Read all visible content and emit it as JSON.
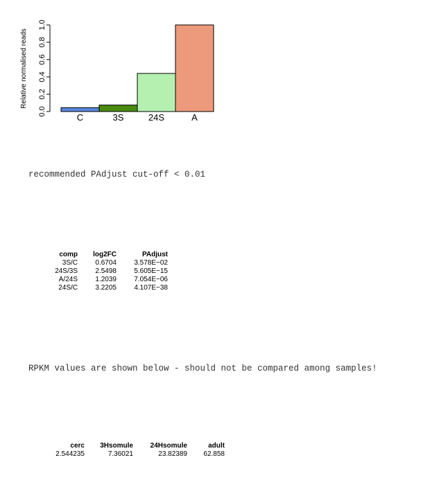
{
  "chart_data": {
    "type": "bar",
    "categories": [
      "C",
      "3S",
      "24S",
      "A"
    ],
    "values": [
      0.045,
      0.075,
      0.44,
      1.0
    ],
    "colors": [
      "#5b86dc",
      "#4a8a12",
      "#b5f0b1",
      "#ec9a7b"
    ],
    "ylabel": "Relative normalised reads",
    "ylim": [
      0,
      1
    ],
    "yticks": [
      "0.0",
      "0.2",
      "0.4",
      "0.6",
      "0.8",
      "1.0"
    ],
    "grid": false
  },
  "notes": {
    "cutoff": "recommended PAdjust cut-off < 0.01",
    "rpkm": "RPKM values are shown below - should not be compared among samples!"
  },
  "comparisons": {
    "headers": [
      "comp",
      "log2FC",
      "PAdjust"
    ],
    "rows": [
      [
        "3S/C",
        "0.6704",
        "3.578E−02"
      ],
      [
        "24S/3S",
        "2.5498",
        "5.605E−15"
      ],
      [
        "A/24S",
        "1.2039",
        "7.054E−06"
      ],
      [
        "24S/C",
        "3.2205",
        "4.107E−38"
      ]
    ]
  },
  "rpkm": {
    "headers": [
      "cerc",
      "3Hsomule",
      "24Hsomule",
      "adult"
    ],
    "rows": [
      [
        "2.544235",
        "7.36021",
        "23.82389",
        "62.858"
      ]
    ]
  }
}
